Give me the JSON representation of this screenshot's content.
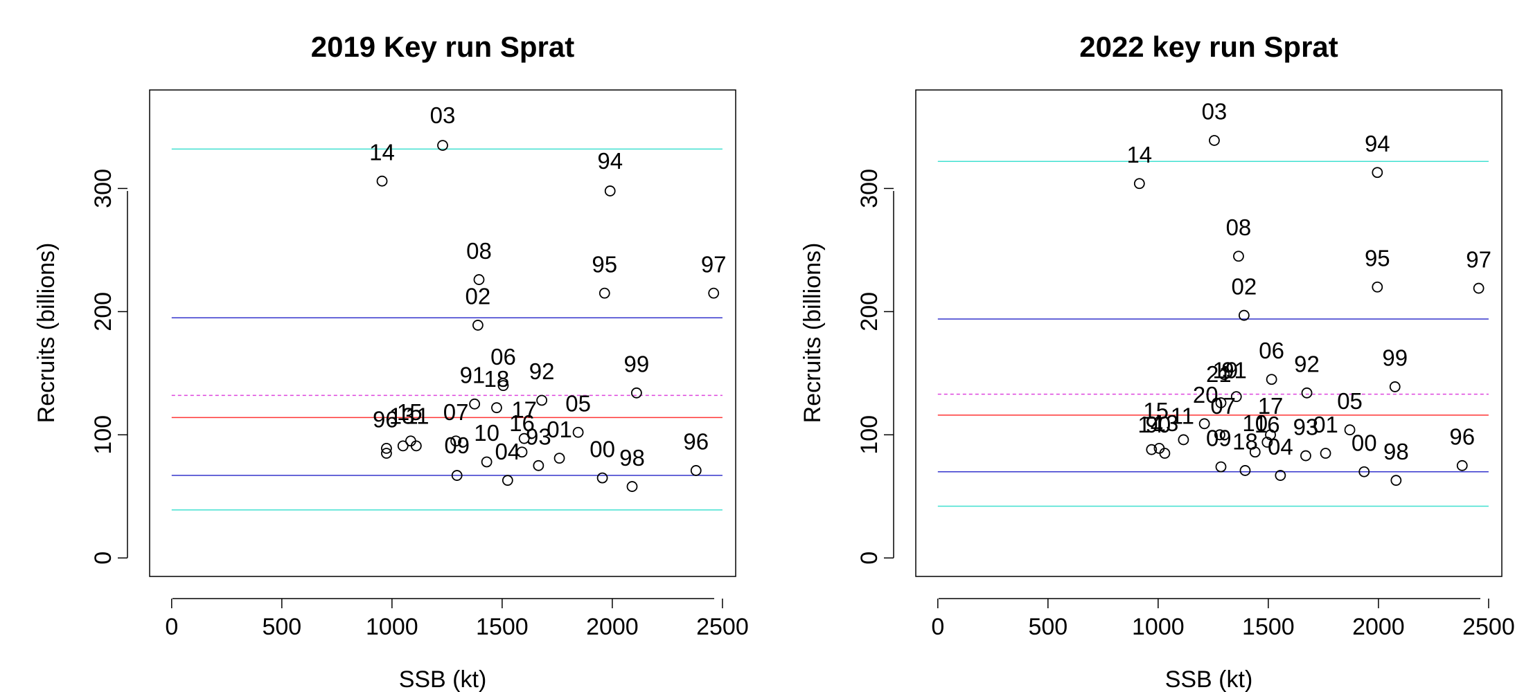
{
  "chart_data": [
    {
      "type": "scatter",
      "title": "2019 Key run Sprat",
      "xlabel": "SSB (kt)",
      "ylabel": "Recruits (billions)",
      "xlim": [
        -100,
        2560
      ],
      "ylim": [
        -15,
        380
      ],
      "xticks": [
        0,
        500,
        1000,
        1500,
        2000,
        2500
      ],
      "yticks": [
        0,
        100,
        200,
        300
      ],
      "grid": false,
      "lines": [
        {
          "y": 332,
          "color": "#40E0D0",
          "style": "solid"
        },
        {
          "y": 195,
          "color": "#3333CC",
          "style": "solid"
        },
        {
          "y": 132,
          "color": "#DD44DD",
          "style": "dashed"
        },
        {
          "y": 114,
          "color": "#FF3333",
          "style": "solid"
        },
        {
          "y": 67,
          "color": "#3333CC",
          "style": "solid"
        },
        {
          "y": 39,
          "color": "#40E0D0",
          "style": "solid"
        }
      ],
      "points": [
        {
          "label": "03",
          "x": 1230,
          "y": 335
        },
        {
          "label": "14",
          "x": 955,
          "y": 306
        },
        {
          "label": "94",
          "x": 1990,
          "y": 298
        },
        {
          "label": "08",
          "x": 1395,
          "y": 226
        },
        {
          "label": "95",
          "x": 1965,
          "y": 215
        },
        {
          "label": "97",
          "x": 2460,
          "y": 215
        },
        {
          "label": "02",
          "x": 1390,
          "y": 189
        },
        {
          "label": "06",
          "x": 1505,
          "y": 140
        },
        {
          "label": "99",
          "x": 2110,
          "y": 134
        },
        {
          "label": "92",
          "x": 1680,
          "y": 128
        },
        {
          "label": "91",
          "x": 1375,
          "y": 125
        },
        {
          "label": "18",
          "x": 1475,
          "y": 122
        },
        {
          "label": "05",
          "x": 1845,
          "y": 102
        },
        {
          "label": "17",
          "x": 1600,
          "y": 97
        },
        {
          "label": "07",
          "x": 1290,
          "y": 95
        },
        {
          "label": "15",
          "x": 1085,
          "y": 95
        },
        {
          "label": "11",
          "x": 1110,
          "y": 91
        },
        {
          "label": "13",
          "x": 1050,
          "y": 91
        },
        {
          "label": "16",
          "x": 1590,
          "y": 86
        },
        {
          "label": "96",
          "x": 975,
          "y": 89
        },
        {
          "label": "90",
          "x": 975,
          "y": 85
        },
        {
          "label": "01",
          "x": 1760,
          "y": 81
        },
        {
          "label": "10",
          "x": 1430,
          "y": 78
        },
        {
          "label": "93",
          "x": 1665,
          "y": 75
        },
        {
          "label": "96",
          "x": 2380,
          "y": 71
        },
        {
          "label": "09",
          "x": 1295,
          "y": 67
        },
        {
          "label": "00",
          "x": 1955,
          "y": 65
        },
        {
          "label": "04",
          "x": 1525,
          "y": 63
        },
        {
          "label": "98",
          "x": 2090,
          "y": 58
        }
      ],
      "visible_labels": [
        {
          "text": "03",
          "x": 1230,
          "y": 353
        },
        {
          "text": "14",
          "x": 955,
          "y": 323
        },
        {
          "text": "94",
          "x": 1990,
          "y": 316
        },
        {
          "text": "08",
          "x": 1395,
          "y": 243
        },
        {
          "text": "95",
          "x": 1965,
          "y": 232
        },
        {
          "text": "97",
          "x": 2460,
          "y": 232
        },
        {
          "text": "02",
          "x": 1390,
          "y": 206
        },
        {
          "text": "06",
          "x": 1505,
          "y": 157
        },
        {
          "text": "99",
          "x": 2110,
          "y": 151
        },
        {
          "text": "92",
          "x": 1680,
          "y": 145
        },
        {
          "text": "91",
          "x": 1365,
          "y": 142
        },
        {
          "text": "18",
          "x": 1475,
          "y": 139
        },
        {
          "text": "05",
          "x": 1845,
          "y": 119
        },
        {
          "text": "17",
          "x": 1600,
          "y": 114
        },
        {
          "text": "07",
          "x": 1290,
          "y": 112
        },
        {
          "text": "15",
          "x": 1080,
          "y": 112
        },
        {
          "text": "11",
          "x": 1115,
          "y": 109
        },
        {
          "text": "13",
          "x": 1045,
          "y": 109
        },
        {
          "text": "16",
          "x": 1590,
          "y": 103
        },
        {
          "text": "96",
          "x": 970,
          "y": 106
        },
        {
          "text": "01",
          "x": 1760,
          "y": 98
        },
        {
          "text": "10",
          "x": 1430,
          "y": 95
        },
        {
          "text": "93",
          "x": 1665,
          "y": 92
        },
        {
          "text": "96",
          "x": 2380,
          "y": 88
        },
        {
          "text": "09",
          "x": 1295,
          "y": 85
        },
        {
          "text": "00",
          "x": 1955,
          "y": 82
        },
        {
          "text": "04",
          "x": 1525,
          "y": 80
        },
        {
          "text": "98",
          "x": 2090,
          "y": 75
        }
      ]
    },
    {
      "type": "scatter",
      "title": "2022 key run Sprat",
      "xlabel": "SSB (kt)",
      "ylabel": "Recruits (billions)",
      "xlim": [
        -100,
        2560
      ],
      "ylim": [
        -15,
        380
      ],
      "xticks": [
        0,
        500,
        1000,
        1500,
        2000,
        2500
      ],
      "yticks": [
        0,
        100,
        200,
        300
      ],
      "grid": false,
      "lines": [
        {
          "y": 322,
          "color": "#40E0D0",
          "style": "solid"
        },
        {
          "y": 194,
          "color": "#3333CC",
          "style": "solid"
        },
        {
          "y": 133,
          "color": "#DD44DD",
          "style": "dashed"
        },
        {
          "y": 116,
          "color": "#FF3333",
          "style": "solid"
        },
        {
          "y": 70,
          "color": "#3333CC",
          "style": "solid"
        },
        {
          "y": 42,
          "color": "#40E0D0",
          "style": "solid"
        }
      ],
      "points": [
        {
          "label": "03",
          "x": 1255,
          "y": 339
        },
        {
          "label": "14",
          "x": 915,
          "y": 304
        },
        {
          "label": "94",
          "x": 1995,
          "y": 313
        },
        {
          "label": "08",
          "x": 1365,
          "y": 245
        },
        {
          "label": "95",
          "x": 1995,
          "y": 220
        },
        {
          "label": "97",
          "x": 2455,
          "y": 219
        },
        {
          "label": "02",
          "x": 1390,
          "y": 197
        },
        {
          "label": "06",
          "x": 1515,
          "y": 145
        },
        {
          "label": "99",
          "x": 2075,
          "y": 139
        },
        {
          "label": "92",
          "x": 1675,
          "y": 134
        },
        {
          "label": "19",
          "x": 1300,
          "y": 149
        },
        {
          "label": "91",
          "x": 1355,
          "y": 131
        },
        {
          "label": "21",
          "x": 1285,
          "y": 126
        },
        {
          "label": "05",
          "x": 1870,
          "y": 104
        },
        {
          "label": "20",
          "x": 1210,
          "y": 109
        },
        {
          "label": "17",
          "x": 1510,
          "y": 100
        },
        {
          "label": "07",
          "x": 1280,
          "y": 100
        },
        {
          "label": "11",
          "x": 1115,
          "y": 96
        },
        {
          "label": "13",
          "x": 1030,
          "y": 85
        },
        {
          "label": "15",
          "x": 1005,
          "y": 89
        },
        {
          "label": "90",
          "x": 970,
          "y": 88
        },
        {
          "label": "16",
          "x": 1495,
          "y": 94
        },
        {
          "label": "10",
          "x": 1440,
          "y": 86
        },
        {
          "label": "93",
          "x": 1670,
          "y": 83
        },
        {
          "label": "01",
          "x": 1760,
          "y": 85
        },
        {
          "label": "96",
          "x": 2380,
          "y": 75
        },
        {
          "label": "09",
          "x": 1285,
          "y": 74
        },
        {
          "label": "18",
          "x": 1395,
          "y": 71
        },
        {
          "label": "04",
          "x": 1555,
          "y": 67
        },
        {
          "label": "00",
          "x": 1935,
          "y": 70
        },
        {
          "label": "98",
          "x": 2080,
          "y": 63
        }
      ],
      "visible_labels": [
        {
          "text": "03",
          "x": 1255,
          "y": 356
        },
        {
          "text": "14",
          "x": 915,
          "y": 321
        },
        {
          "text": "94",
          "x": 1995,
          "y": 330
        },
        {
          "text": "08",
          "x": 1365,
          "y": 262
        },
        {
          "text": "95",
          "x": 1995,
          "y": 237
        },
        {
          "text": "97",
          "x": 2455,
          "y": 236
        },
        {
          "text": "02",
          "x": 1390,
          "y": 214
        },
        {
          "text": "06",
          "x": 1515,
          "y": 162
        },
        {
          "text": "99",
          "x": 2075,
          "y": 156
        },
        {
          "text": "92",
          "x": 1675,
          "y": 151
        },
        {
          "text": "19",
          "x": 1305,
          "y": 146
        },
        {
          "text": "21",
          "x": 1275,
          "y": 143
        },
        {
          "text": "91",
          "x": 1345,
          "y": 146
        },
        {
          "text": "05",
          "x": 1870,
          "y": 121
        },
        {
          "text": "20",
          "x": 1215,
          "y": 126
        },
        {
          "text": "17",
          "x": 1510,
          "y": 117
        },
        {
          "text": "07",
          "x": 1295,
          "y": 117
        },
        {
          "text": "15",
          "x": 990,
          "y": 113
        },
        {
          "text": "11",
          "x": 1110,
          "y": 109
        },
        {
          "text": "13",
          "x": 1035,
          "y": 103
        },
        {
          "text": "14",
          "x": 965,
          "y": 102
        },
        {
          "text": "90",
          "x": 1000,
          "y": 102
        },
        {
          "text": "10",
          "x": 1440,
          "y": 103
        },
        {
          "text": "16",
          "x": 1495,
          "y": 102
        },
        {
          "text": "93",
          "x": 1670,
          "y": 100
        },
        {
          "text": "01",
          "x": 1760,
          "y": 102
        },
        {
          "text": "96",
          "x": 2380,
          "y": 92
        },
        {
          "text": "09",
          "x": 1275,
          "y": 91
        },
        {
          "text": "18",
          "x": 1395,
          "y": 88
        },
        {
          "text": "04",
          "x": 1555,
          "y": 84
        },
        {
          "text": "00",
          "x": 1935,
          "y": 87
        },
        {
          "text": "98",
          "x": 2080,
          "y": 80
        }
      ]
    }
  ]
}
